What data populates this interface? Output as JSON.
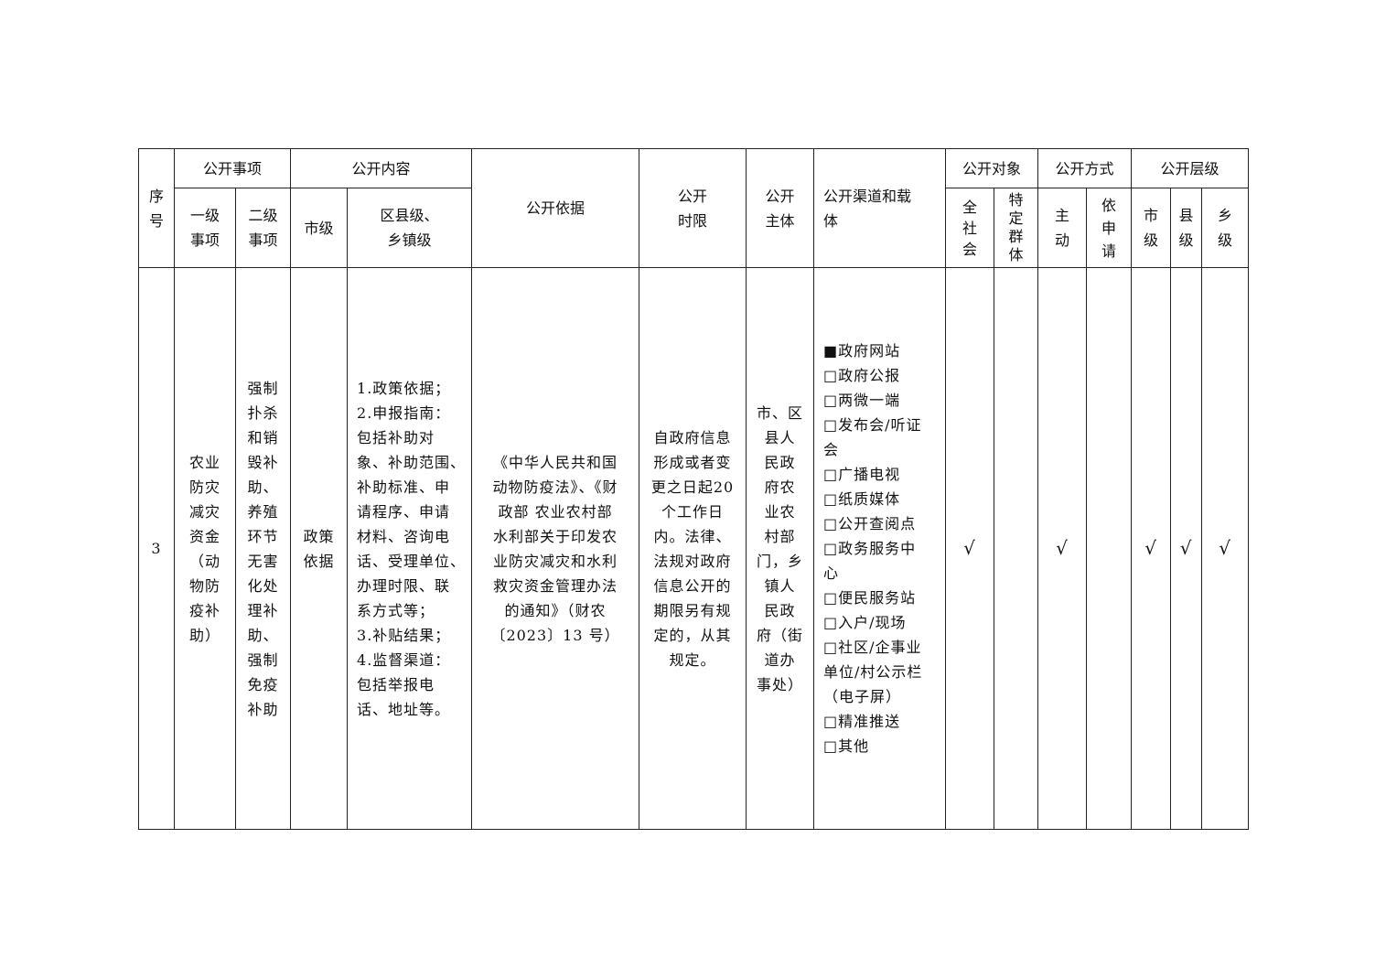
{
  "header": {
    "seq": "序\n号",
    "matter": "公开事项",
    "matter_l1": "一级\n事项",
    "matter_l2": "二级\n事项",
    "content": "公开内容",
    "content_city": "市级",
    "content_county": "区县级、\n乡镇级",
    "basis": "公开依据",
    "time_limit": "公开\n时限",
    "subject": "公开\n主体",
    "channel": "公开渠道和载\n体",
    "target": "公开对象",
    "target_all": "全\n社\n会",
    "target_specific": "特\n定\n群\n体",
    "method": "公开方式",
    "method_active": "主\n动",
    "method_request": "依\n申\n请",
    "level": "公开层级",
    "level_city": "市\n级",
    "level_county": "县\n级",
    "level_town": "乡\n级"
  },
  "row": {
    "seq": "3",
    "matter_l1": "农业\n防灾\n减灾\n资金\n（动\n物防\n疫补\n助）",
    "matter_l2": "强制\n扑杀\n和销\n毁补\n助、\n养殖\n环节\n无害\n化处\n理补\n助、\n强制\n免疫\n补助",
    "content_city": "政策\n依据",
    "content_county": "1.政策依据；\n2.申报指南：\n包括补助对\n象、补助范围、\n补助标准、申\n请程序、申请\n材料、咨询电\n话、受理单位、\n办理时限、联\n系方式等；\n3.补贴结果；\n4.监督渠道：\n包括举报电\n话、地址等。",
    "basis": "《中华人民共和国\n动物防疫法》、《财\n政部 农业农村部\n水利部关于印发农\n业防灾减灾和水利\n救灾资金管理办法\n的通知》（财农\n〔2023〕13 号）",
    "time_limit": "自政府信息\n形成或者变\n更之日起20\n个工作日\n内。法律、\n法规对政府\n信息公开的\n期限另有规\n定的，从其\n规定。",
    "subject": "市、区\n县人\n民政\n府农\n业农\n村部\n门，乡\n镇人\n民政\n府（街\n道办\n事处）",
    "channels": "■政府网站\n□政府公报\n□两微一端\n□发布会/听证\n会\n□广播电视\n□纸质媒体\n□公开查阅点\n□政务服务中\n心\n□便民服务站\n□入户/现场\n□社区/企事业\n单位/村公示栏\n（电子屏）\n□精准推送\n□其他",
    "target_all": "√",
    "target_specific": "",
    "method_active": "√",
    "method_request": "",
    "level_city": "√",
    "level_county": "√",
    "level_town": "√"
  }
}
